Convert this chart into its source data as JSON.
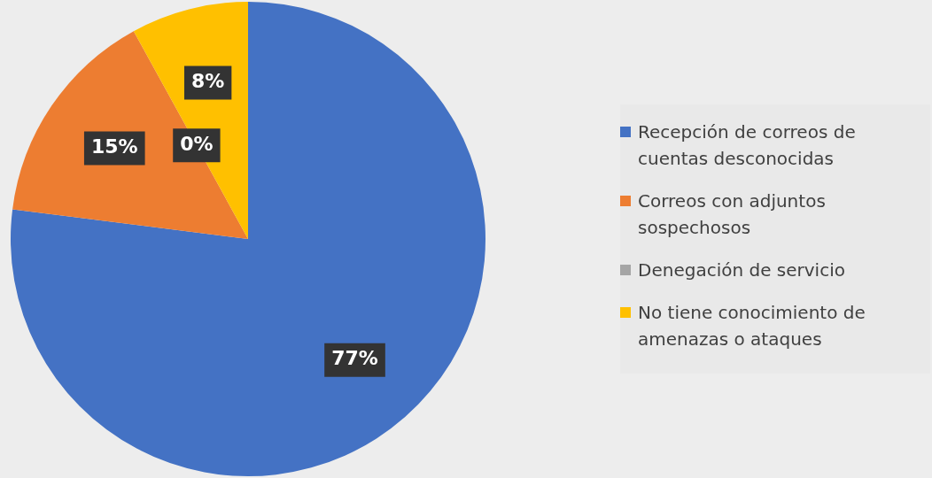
{
  "chart_data": {
    "type": "pie",
    "categories": [
      "Recepción de correos de cuentas desconocidas",
      "Correos con adjuntos sospechosos",
      "Denegación de servicio",
      "No tiene conocimiento de amenazas o ataques"
    ],
    "values": [
      77,
      15,
      0,
      8
    ],
    "colors": [
      "#4472c4",
      "#ed7d31",
      "#a5a5a5",
      "#ffc000"
    ],
    "value_labels": [
      "77%",
      "15%",
      "0%",
      "8%"
    ],
    "legend": "right"
  }
}
